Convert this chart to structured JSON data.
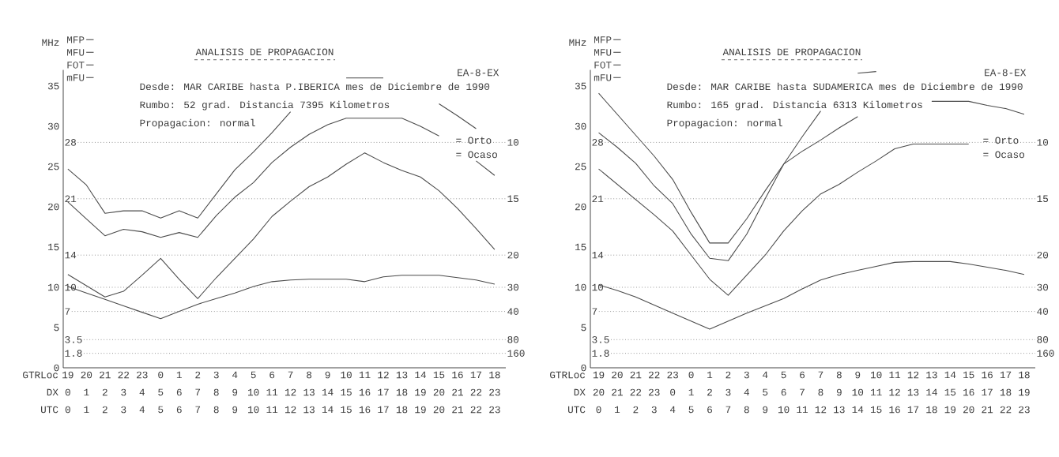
{
  "chart_data": [
    {
      "type": "line",
      "title": "ANALISIS DE PROPAGACION",
      "ylabel": "MHz",
      "xlabel": "UTC",
      "categories": [
        "0",
        "1",
        "2",
        "3",
        "4",
        "5",
        "6",
        "7",
        "8",
        "9",
        "10",
        "11",
        "12",
        "13",
        "14",
        "15",
        "16",
        "17",
        "18",
        "19",
        "20",
        "21",
        "22",
        "23"
      ],
      "ylim": [
        0,
        37
      ],
      "yticks": [
        0,
        5,
        10,
        15,
        20,
        25,
        30,
        35
      ],
      "legend": "top left",
      "series": [
        {
          "name": "MFP",
          "color": "#4a4a4a",
          "values": [
            24.7,
            22.7,
            19.2,
            19.5,
            19.5,
            18.6,
            19.5,
            18.6,
            21.6,
            24.6,
            26.8,
            29.2,
            31.8,
            null,
            null,
            36,
            36,
            36,
            null,
            null,
            32.8,
            31.3,
            29.7,
            null
          ]
        },
        {
          "name": "MFU",
          "color": "#4a4a4a",
          "values": [
            20.6,
            18.5,
            16.4,
            17.2,
            16.9,
            16.2,
            16.8,
            16.2,
            18.9,
            21.2,
            23,
            25.5,
            27.4,
            29,
            30.2,
            31,
            31,
            31,
            31,
            30,
            28.8,
            null,
            25.7,
            23.9
          ]
        },
        {
          "name": "FOT",
          "color": "#4a4a4a",
          "values": [
            11.6,
            10.2,
            8.8,
            9.5,
            11.5,
            13.6,
            11,
            8.6,
            11.2,
            13.6,
            16,
            18.8,
            20.7,
            22.5,
            23.7,
            25.3,
            26.7,
            25.5,
            24.5,
            23.7,
            22,
            19.8,
            17.3,
            14.7
          ]
        },
        {
          "name": "mFU",
          "color": "#4a4a4a",
          "values": [
            10.1,
            9.3,
            8.5,
            7.7,
            6.9,
            6.1,
            7,
            7.9,
            8.6,
            9.3,
            10.1,
            10.7,
            10.9,
            11,
            11,
            11,
            10.7,
            11.3,
            11.5,
            11.5,
            11.5,
            11.2,
            10.9,
            10.4
          ]
        }
      ],
      "ref_lines": [
        {
          "axis": "y",
          "value": 28,
          "label": "28",
          "color": "#8a8a8a",
          "line_style": "dotted"
        },
        {
          "axis": "y",
          "value": 21,
          "label": "21",
          "color": "#8a8a8a",
          "line_style": "dotted"
        },
        {
          "axis": "y",
          "value": 14,
          "label": "14",
          "color": "#8a8a8a",
          "line_style": "dotted"
        },
        {
          "axis": "y",
          "value": 10,
          "label": "10",
          "color": "#8a8a8a",
          "line_style": "dotted"
        },
        {
          "axis": "y",
          "value": 7,
          "label": "7",
          "color": "#8a8a8a",
          "line_style": "dotted"
        },
        {
          "axis": "y",
          "value": 3.5,
          "label": "3.5",
          "color": "#8a8a8a",
          "line_style": "dotted"
        },
        {
          "axis": "y",
          "value": 1.8,
          "label": "1.8",
          "color": "#8a8a8a",
          "line_style": "dotted"
        }
      ],
      "annotations": [
        "EA-8-EX",
        "Desde: MAR CARIBE hasta P.IBERICA mes de Diciembre de 1990",
        "Rumbo: 52 grad. Distancia 7395 Kilometros",
        "Propagacion: normal",
        "= Orto",
        "= Ocaso",
        "10",
        "15",
        "20",
        "30",
        "40",
        "80",
        "160",
        "GTRLoc",
        "19",
        "20",
        "21",
        "22",
        "23",
        "0",
        "1",
        "2",
        "3",
        "4",
        "5",
        "6",
        "7",
        "8",
        "9",
        "10",
        "11",
        "12",
        "13",
        "14",
        "15",
        "16",
        "17",
        "18",
        "DX",
        "0",
        "1",
        "2",
        "3",
        "4",
        "5",
        "6",
        "7",
        "8",
        "9",
        "10",
        "11",
        "12",
        "13",
        "14",
        "15",
        "16",
        "17",
        "18",
        "19",
        "20",
        "21",
        "22",
        "23"
      ]
    },
    {
      "type": "line",
      "title": "ANALISIS DE PROPAGACION",
      "ylabel": "MHz",
      "xlabel": "UTC",
      "categories": [
        "0",
        "1",
        "2",
        "3",
        "4",
        "5",
        "6",
        "7",
        "8",
        "9",
        "10",
        "11",
        "12",
        "13",
        "14",
        "15",
        "16",
        "17",
        "18",
        "19",
        "20",
        "21",
        "22",
        "23"
      ],
      "ylim": [
        0,
        37
      ],
      "yticks": [
        0,
        5,
        10,
        15,
        20,
        25,
        30,
        35
      ],
      "legend": "top left",
      "series": [
        {
          "name": "MFP",
          "color": "#4a4a4a",
          "values": [
            34.1,
            31.5,
            28.9,
            26.3,
            23.4,
            19.3,
            15.5,
            15.5,
            18.5,
            22,
            25.3,
            28.7,
            31.9,
            null,
            36.6,
            36.8,
            null,
            null,
            null,
            null,
            null,
            null,
            null,
            null
          ]
        },
        {
          "name": "MFU",
          "color": "#4a4a4a",
          "values": [
            29.2,
            27.4,
            25.4,
            22.6,
            20.4,
            16.6,
            13.6,
            13.3,
            16.6,
            21,
            25.3,
            26.9,
            28.3,
            29.8,
            31.2,
            null,
            null,
            null,
            33.1,
            33.1,
            33.1,
            32.6,
            32.2,
            31.5
          ]
        },
        {
          "name": "FOT",
          "color": "#4a4a4a",
          "values": [
            24.7,
            22.8,
            20.9,
            19,
            17,
            14,
            11,
            9,
            11.5,
            14,
            17,
            19.5,
            21.6,
            22.8,
            24.3,
            25.7,
            27.2,
            27.8,
            27.8,
            27.8,
            27.8,
            null,
            null,
            null
          ]
        },
        {
          "name": "mFU",
          "color": "#4a4a4a",
          "values": [
            10.3,
            9.6,
            8.8,
            7.8,
            6.8,
            5.8,
            4.8,
            5.8,
            6.8,
            7.7,
            8.6,
            9.8,
            10.9,
            11.6,
            12.1,
            12.6,
            13.1,
            13.2,
            13.2,
            13.2,
            12.9,
            12.5,
            12.1,
            11.6
          ]
        }
      ],
      "ref_lines": [
        {
          "axis": "y",
          "value": 28,
          "label": "28",
          "color": "#8a8a8a",
          "line_style": "dotted"
        },
        {
          "axis": "y",
          "value": 21,
          "label": "21",
          "color": "#8a8a8a",
          "line_style": "dotted"
        },
        {
          "axis": "y",
          "value": 14,
          "label": "14",
          "color": "#8a8a8a",
          "line_style": "dotted"
        },
        {
          "axis": "y",
          "value": 10,
          "label": "10",
          "color": "#8a8a8a",
          "line_style": "dotted"
        },
        {
          "axis": "y",
          "value": 7,
          "label": "7",
          "color": "#8a8a8a",
          "line_style": "dotted"
        },
        {
          "axis": "y",
          "value": 3.5,
          "label": "3.5",
          "color": "#8a8a8a",
          "line_style": "dotted"
        },
        {
          "axis": "y",
          "value": 1.8,
          "label": "1.8",
          "color": "#8a8a8a",
          "line_style": "dotted"
        }
      ],
      "annotations": [
        "EA-8-EX",
        "Desde: MAR CARIBE hasta SUDAMERICA mes de Diciembre de 1990",
        "Rumbo: 165 grad. Distancia 6313 Kilometros",
        "Propagacion: normal",
        "= Orto",
        "= Ocaso",
        "10",
        "15",
        "20",
        "30",
        "40",
        "80",
        "160",
        "GTRLoc",
        "19",
        "20",
        "21",
        "22",
        "23",
        "0",
        "1",
        "2",
        "3",
        "4",
        "5",
        "6",
        "7",
        "8",
        "9",
        "10",
        "11",
        "12",
        "13",
        "14",
        "15",
        "16",
        "17",
        "18",
        "DX",
        "20",
        "21",
        "22",
        "23",
        "0",
        "1",
        "2",
        "3",
        "4",
        "5",
        "6",
        "7",
        "8",
        "9",
        "10",
        "11",
        "12",
        "13",
        "14",
        "15",
        "16",
        "17",
        "18",
        "19"
      ]
    }
  ]
}
